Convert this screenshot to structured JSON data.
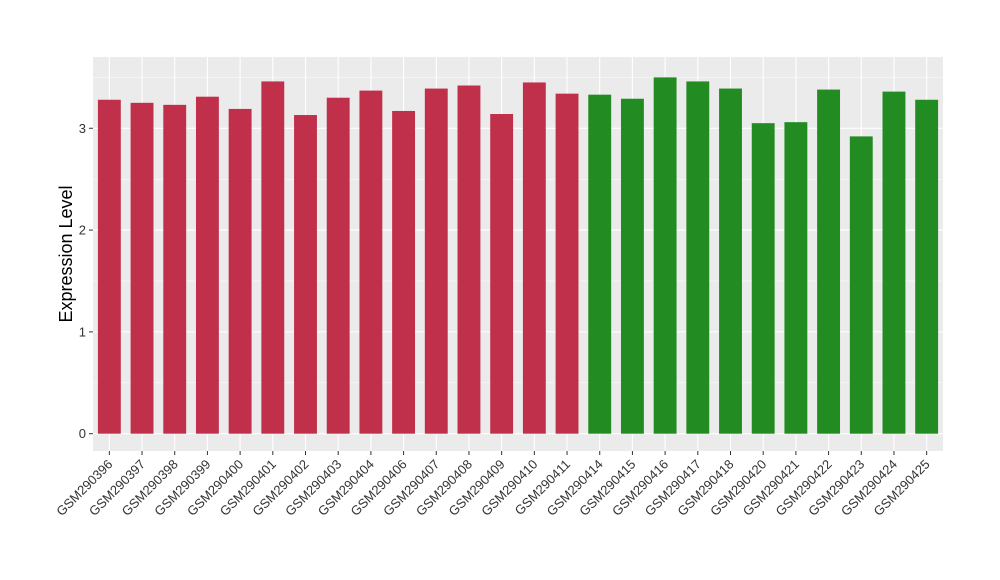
{
  "chart_data": {
    "type": "bar",
    "title": "",
    "xlabel": "",
    "ylabel": "Expression Level",
    "ylim": [
      -0.17,
      3.7
    ],
    "yticks": [
      0,
      1,
      2,
      3
    ],
    "grid": true,
    "legend": "none",
    "categories": [
      "GSM290396",
      "GSM290397",
      "GSM290398",
      "GSM290399",
      "GSM290400",
      "GSM290401",
      "GSM290402",
      "GSM290403",
      "GSM290404",
      "GSM290406",
      "GSM290407",
      "GSM290408",
      "GSM290409",
      "GSM290410",
      "GSM290411",
      "GSM290414",
      "GSM290415",
      "GSM290416",
      "GSM290417",
      "GSM290418",
      "GSM290420",
      "GSM290421",
      "GSM290422",
      "GSM290423",
      "GSM290424",
      "GSM290425"
    ],
    "values": [
      3.28,
      3.25,
      3.23,
      3.31,
      3.19,
      3.46,
      3.13,
      3.3,
      3.37,
      3.17,
      3.39,
      3.42,
      3.14,
      3.45,
      3.34,
      3.33,
      3.29,
      3.5,
      3.46,
      3.39,
      3.05,
      3.06,
      3.38,
      2.92,
      3.36,
      3.28
    ],
    "bar_colors": [
      "#c0304a",
      "#c0304a",
      "#c0304a",
      "#c0304a",
      "#c0304a",
      "#c0304a",
      "#c0304a",
      "#c0304a",
      "#c0304a",
      "#c0304a",
      "#c0304a",
      "#c0304a",
      "#c0304a",
      "#c0304a",
      "#c0304a",
      "#228b22",
      "#228b22",
      "#228b22",
      "#228b22",
      "#228b22",
      "#228b22",
      "#228b22",
      "#228b22",
      "#228b22",
      "#228b22",
      "#228b22"
    ],
    "panel_background": "#ebebeb",
    "gridline_color": "#ffffff"
  }
}
